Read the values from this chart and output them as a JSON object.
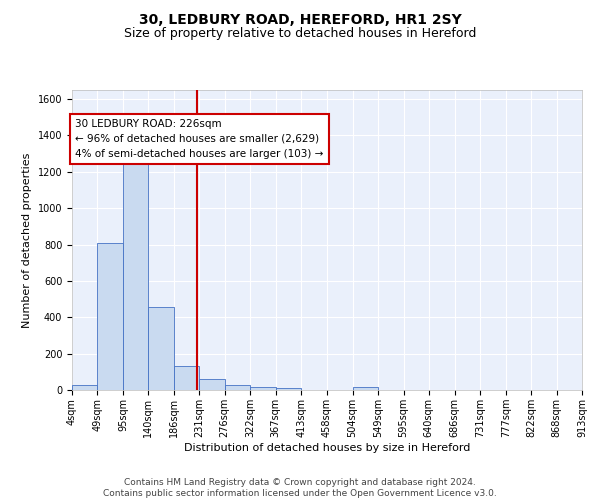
{
  "title1": "30, LEDBURY ROAD, HEREFORD, HR1 2SY",
  "title2": "Size of property relative to detached houses in Hereford",
  "xlabel": "Distribution of detached houses by size in Hereford",
  "ylabel": "Number of detached properties",
  "bar_color": "#c9daf0",
  "bar_edge_color": "#4472c4",
  "background_color": "#eaf0fb",
  "grid_color": "#ffffff",
  "annotation_line_color": "#cc0000",
  "annotation_box_color": "#cc0000",
  "annotation_text": "30 LEDBURY ROAD: 226sqm\n← 96% of detached houses are smaller (2,629)\n4% of semi-detached houses are larger (103) →",
  "property_sqm": 226,
  "ylim": [
    0,
    1650
  ],
  "yticks": [
    0,
    200,
    400,
    600,
    800,
    1000,
    1200,
    1400,
    1600
  ],
  "bin_edges": [
    4,
    49,
    95,
    140,
    186,
    231,
    276,
    322,
    367,
    413,
    458,
    504,
    549,
    595,
    640,
    686,
    731,
    777,
    822,
    868,
    913
  ],
  "bin_heights": [
    25,
    810,
    1245,
    458,
    130,
    63,
    25,
    15,
    12,
    0,
    0,
    15,
    0,
    0,
    0,
    0,
    0,
    0,
    0,
    0
  ],
  "footer_text": "Contains HM Land Registry data © Crown copyright and database right 2024.\nContains public sector information licensed under the Open Government Licence v3.0.",
  "title_fontsize": 10,
  "subtitle_fontsize": 9,
  "axis_label_fontsize": 8,
  "tick_fontsize": 7,
  "annotation_fontsize": 7.5,
  "footer_fontsize": 6.5
}
